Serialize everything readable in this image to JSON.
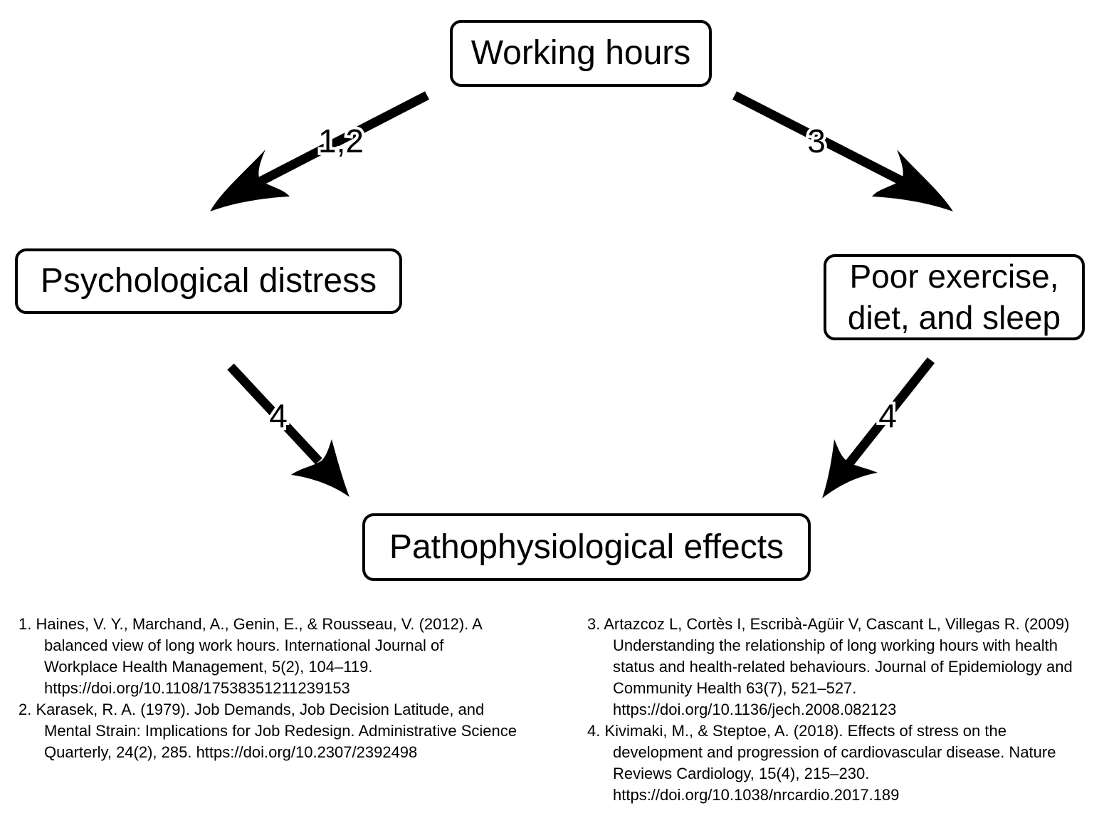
{
  "nodes": {
    "working_hours": "Working hours",
    "psychological_distress": "Psychological distress",
    "poor_lifestyle": "Poor exercise,\ndiet, and sleep",
    "pathophysiological_effects": "Pathophysiological effects"
  },
  "edges": [
    {
      "from": "Working hours",
      "to": "Psychological distress",
      "label": "1,2"
    },
    {
      "from": "Working hours",
      "to": "Poor exercise, diet, and sleep",
      "label": "3"
    },
    {
      "from": "Psychological distress",
      "to": "Pathophysiological effects",
      "label": "4"
    },
    {
      "from": "Poor exercise, diet, and sleep",
      "to": "Pathophysiological effects",
      "label": "4"
    }
  ],
  "references": {
    "left": [
      "1. Haines, V. Y., Marchand, A., Genin, E., & Rousseau, V. (2012). A balanced view of long work hours. International Journal of Workplace Health Management, 5(2), 104–119. https://doi.org/10.1108/17538351211239153",
      "2. Karasek, R. A. (1979). Job Demands, Job Decision Latitude, and Mental Strain: Implications for Job Redesign. Administrative Science Quarterly, 24(2), 285. https://doi.org/10.2307/2392498"
    ],
    "right": [
      "3. Artazcoz L, Cortès I, Escribà-Agüir V, Cascant L, Villegas R. (2009) Understanding the relationship of long working hours with health status and health-related behaviours. Journal of Epidemiology and Community Health 63(7), 521–527. https://doi.org/10.1136/jech.2008.082123",
      "4. Kivimaki, M., & Steptoe, A. (2018). Effects of stress on the development and progression of cardiovascular disease. Nature Reviews Cardiology, 15(4), 215–230. https://doi.org/10.1038/nrcardio.2017.189"
    ]
  },
  "colors": {
    "ink": "#000000",
    "background": "#ffffff"
  }
}
